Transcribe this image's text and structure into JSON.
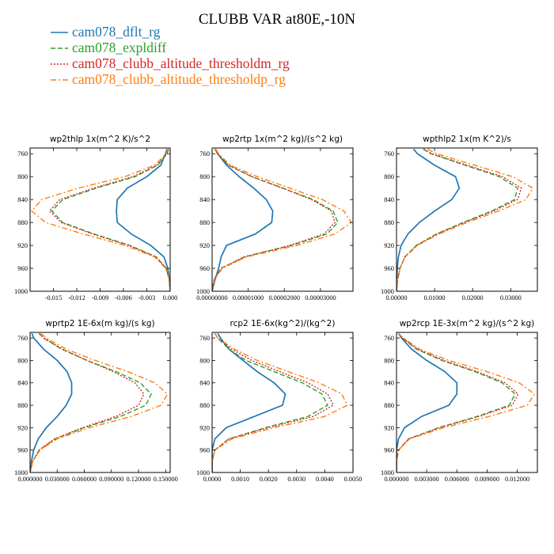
{
  "page_title": "CLUBB VAR at80E,-10N",
  "legend": [
    {
      "label": "cam078_dflt_rg",
      "color": "#1f77b4",
      "dash": "solid"
    },
    {
      "label": "cam078_expldiff",
      "color": "#2ca02c",
      "dash": "dashed"
    },
    {
      "label": "cam078_clubb_altitude_thresholdm_rg",
      "color": "#d62728",
      "dash": "dotted"
    },
    {
      "label": "cam078_clubb_altitude_thresholdp_rg",
      "color": "#ff7f0e",
      "dash": "dashdot"
    }
  ],
  "chart_data": [
    {
      "type": "line",
      "title": "wp2thlp  1x(m^2 K)/s^2",
      "xlim": [
        -0.018,
        0.0
      ],
      "xticks": [
        -0.015,
        -0.012,
        -0.009,
        -0.006,
        -0.003,
        0.0
      ],
      "xtick_labels": [
        "-0.015",
        "-0.012",
        "-0.009",
        "-0.006",
        "-0.003",
        "0.000"
      ],
      "ylim": [
        1000,
        750
      ],
      "yticks": [
        760,
        800,
        840,
        880,
        920,
        960,
        1000
      ],
      "y": [
        752,
        760,
        780,
        800,
        820,
        840,
        860,
        880,
        900,
        920,
        940,
        960,
        980,
        1000
      ],
      "series": [
        {
          "values": [
            -0.0004,
            -0.0006,
            -0.0012,
            -0.003,
            -0.0055,
            -0.0068,
            -0.0069,
            -0.0068,
            -0.005,
            -0.0025,
            -0.0008,
            -0.0003,
            -0.0001,
            0.0
          ]
        },
        {
          "values": [
            -0.0002,
            -0.0004,
            -0.0016,
            -0.0045,
            -0.0095,
            -0.0138,
            -0.0152,
            -0.0138,
            -0.0098,
            -0.0052,
            -0.0018,
            -0.0005,
            -0.0001,
            0.0
          ]
        },
        {
          "values": [
            -0.0002,
            -0.0004,
            -0.0017,
            -0.0048,
            -0.0098,
            -0.0142,
            -0.0155,
            -0.014,
            -0.01,
            -0.0053,
            -0.0018,
            -0.0005,
            -0.0001,
            0.0
          ]
        },
        {
          "values": [
            -0.0003,
            -0.0005,
            -0.002,
            -0.0058,
            -0.0118,
            -0.0165,
            -0.0178,
            -0.016,
            -0.0112,
            -0.0058,
            -0.002,
            -0.0006,
            -0.0001,
            0.0
          ]
        }
      ]
    },
    {
      "type": "line",
      "title": "wp2rtp  1x(m^2 kg)/(s^2 kg)",
      "xlim": [
        0.0,
        3.9e-05
      ],
      "xticks": [
        0.0,
        1e-05,
        2e-05,
        3e-05
      ],
      "xtick_labels": [
        "0.00000000",
        "0.00001000",
        "0.00002000",
        "0.00003000"
      ],
      "ylim": [
        1000,
        750
      ],
      "yticks": [
        760,
        800,
        840,
        880,
        920,
        960,
        1000
      ],
      "y": [
        752,
        760,
        780,
        800,
        820,
        840,
        860,
        880,
        900,
        920,
        940,
        960,
        980,
        1000
      ],
      "series": [
        {
          "values": [
            1e-06,
            1.5e-06,
            4e-06,
            7.5e-06,
            1.15e-05,
            1.5e-05,
            1.68e-05,
            1.65e-05,
            1.2e-05,
            4e-06,
            2.5e-06,
            1.8e-06,
            8e-07,
            0.0
          ]
        },
        {
          "values": [
            8e-07,
            1.5e-06,
            4.5e-06,
            1.1e-05,
            1.95e-05,
            2.8e-05,
            3.35e-05,
            3.48e-05,
            3.18e-05,
            2.2e-05,
            9e-06,
            2.5e-06,
            5e-07,
            0.0
          ]
        },
        {
          "values": [
            8e-07,
            1.5e-06,
            4.5e-06,
            1.1e-05,
            1.95e-05,
            2.75e-05,
            3.3e-05,
            3.4e-05,
            3.1e-05,
            2.15e-05,
            8.8e-06,
            2.5e-06,
            5e-07,
            0.0
          ]
        },
        {
          "values": [
            1e-06,
            1.8e-06,
            5e-06,
            1.25e-05,
            2.15e-05,
            3.05e-05,
            3.65e-05,
            3.85e-05,
            3.4e-05,
            2.35e-05,
            9.5e-06,
            2.8e-06,
            6e-07,
            0.0
          ]
        }
      ]
    },
    {
      "type": "line",
      "title": "wpthlp2  1x(m K^2)/s",
      "xlim": [
        0.0,
        0.037
      ],
      "xticks": [
        0.0,
        0.01,
        0.02,
        0.03
      ],
      "xtick_labels": [
        "0.00000",
        "0.01000",
        "0.02000",
        "0.03000"
      ],
      "ylim": [
        1000,
        750
      ],
      "yticks": [
        760,
        800,
        840,
        880,
        920,
        960,
        1000
      ],
      "y": [
        752,
        760,
        780,
        800,
        820,
        840,
        860,
        880,
        900,
        920,
        940,
        960,
        980,
        1000
      ],
      "series": [
        {
          "values": [
            0.0045,
            0.0055,
            0.01,
            0.0155,
            0.0165,
            0.0145,
            0.01,
            0.006,
            0.003,
            0.0012,
            0.0005,
            0.0002,
            0.0001,
            0.0
          ]
        },
        {
          "values": [
            0.007,
            0.009,
            0.018,
            0.027,
            0.0318,
            0.031,
            0.025,
            0.0175,
            0.0105,
            0.0052,
            0.0022,
            0.0009,
            0.0003,
            0.0
          ]
        },
        {
          "values": [
            0.0072,
            0.0093,
            0.0185,
            0.0278,
            0.0328,
            0.0318,
            0.0255,
            0.0178,
            0.0107,
            0.0053,
            0.0022,
            0.0009,
            0.0003,
            0.0
          ]
        },
        {
          "values": [
            0.0082,
            0.0105,
            0.0205,
            0.0305,
            0.0358,
            0.034,
            0.0268,
            0.0185,
            0.0112,
            0.0055,
            0.0023,
            0.0009,
            0.0003,
            0.0
          ]
        }
      ]
    },
    {
      "type": "line",
      "title": "wprtp2  1E-6x(m kg)/(s kg)",
      "xlim": [
        0.0,
        0.155
      ],
      "xticks": [
        0.0,
        0.03,
        0.06,
        0.09,
        0.12,
        0.15
      ],
      "xtick_labels": [
        "0.000000",
        "0.030000",
        "0.060000",
        "0.090000",
        "0.120000",
        "0.150000"
      ],
      "ylim": [
        1000,
        750
      ],
      "yticks": [
        760,
        800,
        840,
        880,
        920,
        960,
        1000
      ],
      "y": [
        752,
        760,
        780,
        800,
        820,
        840,
        860,
        880,
        900,
        920,
        940,
        960,
        980,
        1000
      ],
      "series": [
        {
          "values": [
            0.002,
            0.004,
            0.015,
            0.03,
            0.041,
            0.046,
            0.046,
            0.04,
            0.03,
            0.018,
            0.009,
            0.004,
            0.0015,
            0.0
          ]
        },
        {
          "values": [
            0.01,
            0.015,
            0.035,
            0.063,
            0.095,
            0.122,
            0.134,
            0.128,
            0.1,
            0.06,
            0.028,
            0.01,
            0.003,
            0.0
          ]
        },
        {
          "values": [
            0.01,
            0.015,
            0.036,
            0.063,
            0.092,
            0.116,
            0.126,
            0.12,
            0.095,
            0.058,
            0.027,
            0.01,
            0.003,
            0.0
          ]
        },
        {
          "values": [
            0.012,
            0.018,
            0.04,
            0.072,
            0.108,
            0.138,
            0.152,
            0.145,
            0.112,
            0.066,
            0.03,
            0.011,
            0.003,
            0.0
          ]
        }
      ]
    },
    {
      "type": "line",
      "title": "rcp2  1E-6x(kg^2)/(kg^2)",
      "xlim": [
        0.0,
        0.005
      ],
      "xticks": [
        0.0,
        0.001,
        0.002,
        0.003,
        0.004,
        0.005
      ],
      "xtick_labels": [
        "0.0000",
        "0.0010",
        "0.0020",
        "0.0030",
        "0.0040",
        "0.0050"
      ],
      "ylim": [
        1000,
        750
      ],
      "yticks": [
        760,
        800,
        840,
        880,
        920,
        960,
        1000
      ],
      "y": [
        752,
        760,
        780,
        800,
        820,
        840,
        860,
        880,
        900,
        920,
        940,
        960,
        980,
        1000
      ],
      "series": [
        {
          "values": [
            0.0002,
            0.0003,
            0.0006,
            0.0011,
            0.0016,
            0.0022,
            0.0026,
            0.0025,
            0.0015,
            0.0005,
            0.0001,
            0.0,
            0.0,
            0.0
          ]
        },
        {
          "values": [
            0.0001,
            0.0002,
            0.0006,
            0.0012,
            0.0022,
            0.0032,
            0.0039,
            0.0041,
            0.0034,
            0.0019,
            0.0006,
            0.0001,
            0.0,
            0.0
          ]
        },
        {
          "values": [
            0.0001,
            0.0002,
            0.0007,
            0.0014,
            0.0024,
            0.0034,
            0.0041,
            0.0043,
            0.0036,
            0.002,
            0.0006,
            0.0001,
            0.0,
            0.0
          ]
        },
        {
          "values": [
            0.0001,
            0.0002,
            0.0008,
            0.0016,
            0.0027,
            0.0038,
            0.0046,
            0.0048,
            0.004,
            0.0022,
            0.0007,
            0.0001,
            0.0,
            0.0
          ]
        }
      ]
    },
    {
      "type": "line",
      "title": "wp2rcp  1E-3x(m^2 kg)/(s^2 kg)",
      "xlim": [
        0.0,
        0.014
      ],
      "xticks": [
        0.0,
        0.003,
        0.006,
        0.009,
        0.012
      ],
      "xtick_labels": [
        "0.000000",
        "0.003000",
        "0.006000",
        "0.009000",
        "0.012000"
      ],
      "ylim": [
        1000,
        750
      ],
      "yticks": [
        760,
        800,
        840,
        880,
        920,
        960,
        1000
      ],
      "y": [
        752,
        760,
        780,
        800,
        820,
        840,
        860,
        880,
        900,
        920,
        940,
        960,
        980,
        1000
      ],
      "series": [
        {
          "values": [
            0.0002,
            0.0005,
            0.0015,
            0.003,
            0.0048,
            0.006,
            0.006,
            0.0052,
            0.0025,
            0.0008,
            0.0002,
            0.0,
            0.0,
            0.0
          ]
        },
        {
          "values": [
            0.0002,
            0.0006,
            0.002,
            0.0045,
            0.0078,
            0.0105,
            0.0118,
            0.0112,
            0.008,
            0.0042,
            0.0012,
            0.0002,
            0.0,
            0.0
          ]
        },
        {
          "values": [
            0.0002,
            0.0006,
            0.0021,
            0.0047,
            0.008,
            0.0108,
            0.0121,
            0.0115,
            0.0082,
            0.0043,
            0.0012,
            0.0002,
            0.0,
            0.0
          ]
        },
        {
          "values": [
            0.0002,
            0.0007,
            0.0023,
            0.0052,
            0.009,
            0.0122,
            0.0137,
            0.013,
            0.0092,
            0.0047,
            0.0013,
            0.0002,
            0.0,
            0.0
          ]
        }
      ]
    }
  ]
}
